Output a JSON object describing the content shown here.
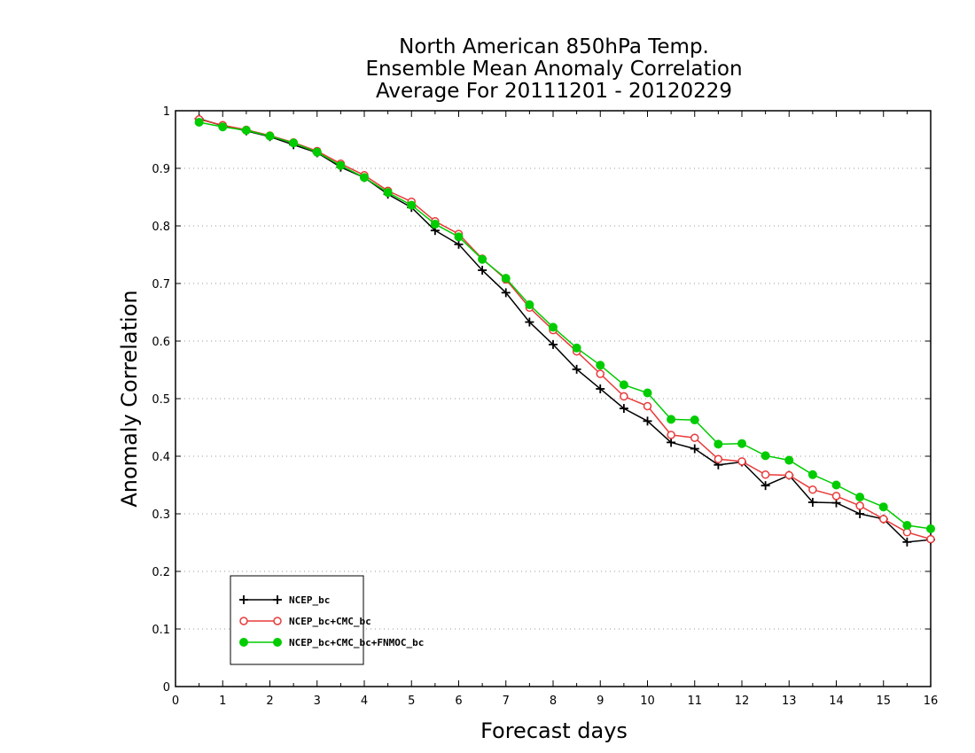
{
  "chart_data": {
    "type": "line",
    "title_lines": [
      "North American 850hPa Temp.",
      "Ensemble Mean Anomaly Correlation",
      "Average For 20111201 - 20120229"
    ],
    "xlabel": "Forecast days",
    "ylabel": "Anomaly Correlation",
    "xlim": [
      0,
      16
    ],
    "ylim": [
      0,
      1
    ],
    "x_ticks": [
      "0",
      "1",
      "2",
      "3",
      "4",
      "5",
      "6",
      "7",
      "8",
      "9",
      "10",
      "11",
      "12",
      "13",
      "14",
      "15",
      "16"
    ],
    "y_ticks": [
      "0",
      "0.1",
      "0.2",
      "0.3",
      "0.4",
      "0.5",
      "0.6",
      "0.7",
      "0.8",
      "0.9",
      "1"
    ],
    "grid": "horizontal dotted",
    "legend_position": "bottom-left",
    "x": [
      0.5,
      1,
      1.5,
      2,
      2.5,
      3,
      3.5,
      4,
      4.5,
      5,
      5.5,
      6,
      6.5,
      7,
      7.5,
      8,
      8.5,
      9,
      9.5,
      10,
      10.5,
      11,
      11.5,
      12,
      12.5,
      13,
      13.5,
      14,
      14.5,
      15,
      15.5,
      16
    ],
    "series": [
      {
        "name": "NCEP_bc",
        "color": "#000000",
        "marker": "plus",
        "values": [
          0.986,
          0.974,
          0.965,
          0.955,
          0.941,
          0.927,
          0.902,
          0.884,
          0.855,
          0.832,
          0.792,
          0.768,
          0.723,
          0.684,
          0.633,
          0.594,
          0.551,
          0.517,
          0.483,
          0.461,
          0.424,
          0.413,
          0.385,
          0.39,
          0.349,
          0.367,
          0.32,
          0.319,
          0.3,
          0.291,
          0.251,
          0.255
        ]
      },
      {
        "name": "NCEP_bc+CMC_bc",
        "color": "#e83a3a",
        "marker": "open-circle",
        "values": [
          0.985,
          0.975,
          0.967,
          0.957,
          0.945,
          0.93,
          0.908,
          0.888,
          0.861,
          0.842,
          0.808,
          0.786,
          0.743,
          0.707,
          0.658,
          0.619,
          0.582,
          0.543,
          0.504,
          0.487,
          0.437,
          0.432,
          0.395,
          0.391,
          0.368,
          0.367,
          0.342,
          0.331,
          0.314,
          0.291,
          0.268,
          0.256
        ]
      },
      {
        "name": "NCEP_bc+CMC_bc+FNMOC_bc",
        "color": "#00cc00",
        "marker": "filled-circle",
        "values": [
          0.98,
          0.972,
          0.966,
          0.956,
          0.944,
          0.928,
          0.905,
          0.884,
          0.858,
          0.836,
          0.803,
          0.781,
          0.742,
          0.709,
          0.663,
          0.624,
          0.588,
          0.558,
          0.524,
          0.51,
          0.464,
          0.463,
          0.421,
          0.422,
          0.401,
          0.393,
          0.368,
          0.35,
          0.329,
          0.312,
          0.28,
          0.274
        ]
      }
    ]
  }
}
